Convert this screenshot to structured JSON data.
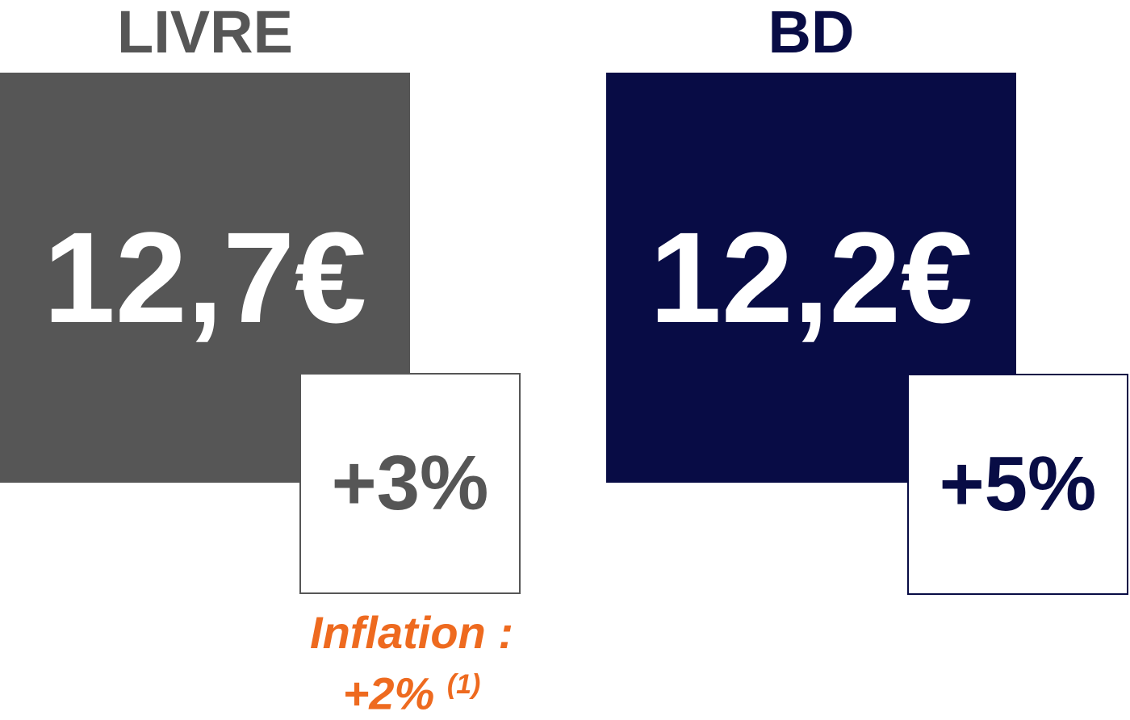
{
  "panels": [
    {
      "title": "LIVRE",
      "price": "12,7€",
      "change": "+3%"
    },
    {
      "title": "BD",
      "price": "12,2€",
      "change": "+5%"
    }
  ],
  "note": {
    "line1": "Inflation :",
    "line2": "+2%",
    "ref": "(1)"
  }
}
